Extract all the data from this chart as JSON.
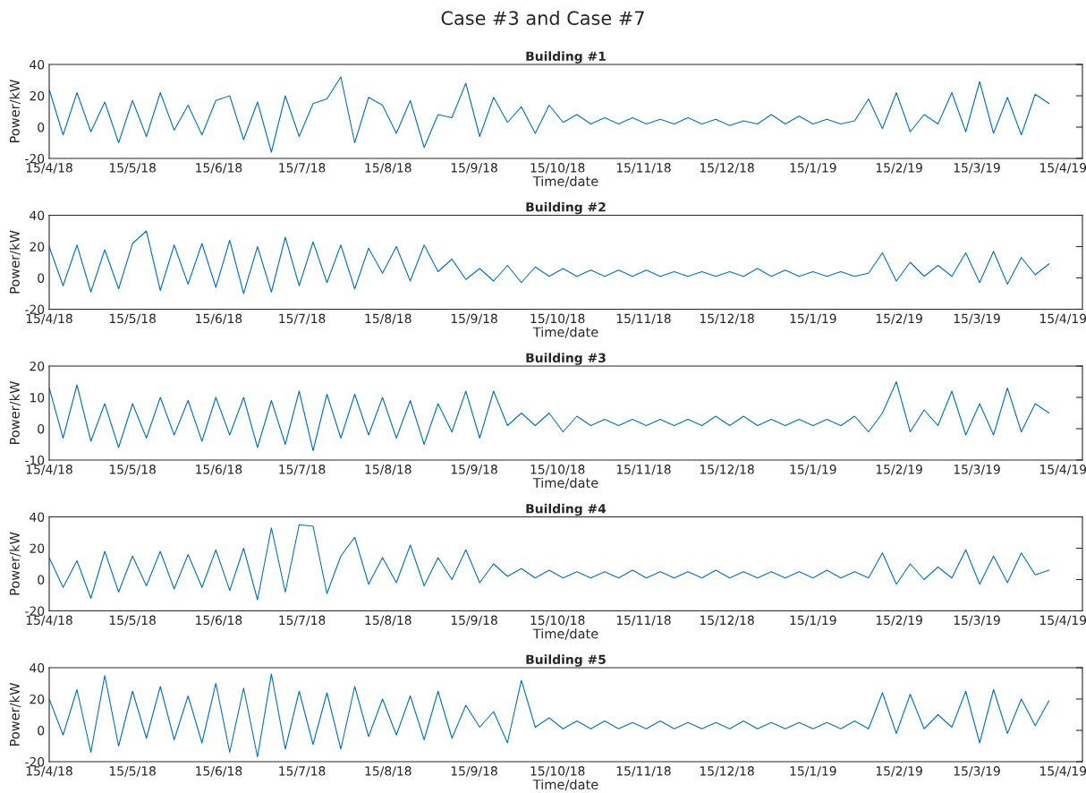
{
  "chart_data": [
    {
      "type": "line",
      "title": "Building #1",
      "xlabel": "Time/date",
      "ylabel": "Power/kW",
      "annotations": [
        "Case #3 and Case #7"
      ],
      "x": [
        "2018-04-15",
        "2018-04-20",
        "2018-04-25",
        "2018-04-30",
        "2018-05-05",
        "2018-05-10",
        "2018-05-15",
        "2018-05-20",
        "2018-05-25",
        "2018-05-30",
        "2018-06-04",
        "2018-06-09",
        "2018-06-14",
        "2018-06-19",
        "2018-06-24",
        "2018-06-29",
        "2018-07-04",
        "2018-07-09",
        "2018-07-14",
        "2018-07-19",
        "2018-07-24",
        "2018-07-29",
        "2018-08-03",
        "2018-08-08",
        "2018-08-13",
        "2018-08-18",
        "2018-08-23",
        "2018-08-28",
        "2018-09-02",
        "2018-09-07",
        "2018-09-12",
        "2018-09-17",
        "2018-09-22",
        "2018-09-27",
        "2018-10-02",
        "2018-10-07",
        "2018-10-12",
        "2018-10-17",
        "2018-10-22",
        "2018-10-27",
        "2018-11-01",
        "2018-11-06",
        "2018-11-11",
        "2018-11-16",
        "2018-11-21",
        "2018-11-26",
        "2018-12-01",
        "2018-12-06",
        "2018-12-11",
        "2018-12-16",
        "2018-12-21",
        "2018-12-26",
        "2018-12-31",
        "2019-01-05",
        "2019-01-10",
        "2019-01-15",
        "2019-01-20",
        "2019-01-25",
        "2019-01-30",
        "2019-02-04",
        "2019-02-09",
        "2019-02-14",
        "2019-02-19",
        "2019-02-24",
        "2019-03-01",
        "2019-03-06",
        "2019-03-11",
        "2019-03-16",
        "2019-03-21",
        "2019-03-26",
        "2019-03-31",
        "2019-04-05",
        "2019-04-10"
      ],
      "series": [
        {
          "color": "#0072bd",
          "values": [
            24,
            -5,
            22,
            -3,
            16,
            -10,
            17,
            -6,
            22,
            -2,
            14,
            -5,
            17,
            20,
            -8,
            16,
            -16,
            20,
            -6,
            15,
            18,
            32,
            -10,
            19,
            14,
            -4,
            17,
            -13,
            8,
            6,
            28,
            -6,
            19,
            3,
            13,
            -4,
            14,
            3,
            8,
            2,
            6,
            2,
            6,
            2,
            5,
            2,
            6,
            2,
            5,
            1,
            4,
            2,
            8,
            2,
            7,
            2,
            5,
            2,
            4,
            18,
            -1,
            22,
            -3,
            8,
            2,
            22,
            -3,
            29,
            -4,
            19,
            -5,
            21,
            15
          ]
        }
      ],
      "xlim": [
        "2018-04-15",
        "2019-04-22"
      ],
      "xticks": [
        {
          "value": "2018-04-15",
          "label": "15/4/18"
        },
        {
          "value": "2018-05-15",
          "label": "15/5/18"
        },
        {
          "value": "2018-06-15",
          "label": "15/6/18"
        },
        {
          "value": "2018-07-15",
          "label": "15/7/18"
        },
        {
          "value": "2018-08-15",
          "label": "15/8/18"
        },
        {
          "value": "2018-09-15",
          "label": "15/9/18"
        },
        {
          "value": "2018-10-15",
          "label": "15/10/18"
        },
        {
          "value": "2018-11-15",
          "label": "15/11/18"
        },
        {
          "value": "2018-12-15",
          "label": "15/12/18"
        },
        {
          "value": "2019-01-15",
          "label": "15/1/19"
        },
        {
          "value": "2019-02-15",
          "label": "15/2/19"
        },
        {
          "value": "2019-03-15",
          "label": "15/3/19"
        },
        {
          "value": "2019-04-15",
          "label": "15/4/19"
        }
      ],
      "ylim": [
        -20,
        40
      ],
      "yticks": [
        -20,
        0,
        20,
        40
      ]
    },
    {
      "type": "line",
      "title": "Building #2",
      "xlabel": "Time/date",
      "ylabel": "Power/kW",
      "x": [
        "2018-04-15",
        "2018-04-20",
        "2018-04-25",
        "2018-04-30",
        "2018-05-05",
        "2018-05-10",
        "2018-05-15",
        "2018-05-20",
        "2018-05-25",
        "2018-05-30",
        "2018-06-04",
        "2018-06-09",
        "2018-06-14",
        "2018-06-19",
        "2018-06-24",
        "2018-06-29",
        "2018-07-04",
        "2018-07-09",
        "2018-07-14",
        "2018-07-19",
        "2018-07-24",
        "2018-07-29",
        "2018-08-03",
        "2018-08-08",
        "2018-08-13",
        "2018-08-18",
        "2018-08-23",
        "2018-08-28",
        "2018-09-02",
        "2018-09-07",
        "2018-09-12",
        "2018-09-17",
        "2018-09-22",
        "2018-09-27",
        "2018-10-02",
        "2018-10-07",
        "2018-10-12",
        "2018-10-17",
        "2018-10-22",
        "2018-10-27",
        "2018-11-01",
        "2018-11-06",
        "2018-11-11",
        "2018-11-16",
        "2018-11-21",
        "2018-11-26",
        "2018-12-01",
        "2018-12-06",
        "2018-12-11",
        "2018-12-16",
        "2018-12-21",
        "2018-12-26",
        "2018-12-31",
        "2019-01-05",
        "2019-01-10",
        "2019-01-15",
        "2019-01-20",
        "2019-01-25",
        "2019-01-30",
        "2019-02-04",
        "2019-02-09",
        "2019-02-14",
        "2019-02-19",
        "2019-02-24",
        "2019-03-01",
        "2019-03-06",
        "2019-03-11",
        "2019-03-16",
        "2019-03-21",
        "2019-03-26",
        "2019-03-31",
        "2019-04-05",
        "2019-04-10"
      ],
      "series": [
        {
          "color": "#0072bd",
          "values": [
            20,
            -5,
            21,
            -9,
            18,
            -7,
            22,
            30,
            -8,
            21,
            -4,
            22,
            -6,
            24,
            -10,
            20,
            -9,
            26,
            -5,
            23,
            -3,
            21,
            -7,
            19,
            3,
            20,
            -2,
            21,
            4,
            12,
            -1,
            6,
            -2,
            8,
            -3,
            7,
            1,
            6,
            1,
            5,
            1,
            5,
            1,
            5,
            1,
            4,
            1,
            4,
            1,
            4,
            1,
            6,
            1,
            5,
            1,
            4,
            1,
            4,
            1,
            3,
            16,
            -2,
            10,
            1,
            8,
            1,
            16,
            -3,
            17,
            -4,
            13,
            2,
            9
          ]
        }
      ],
      "xlim": [
        "2018-04-15",
        "2019-04-22"
      ],
      "xticks": [
        {
          "value": "2018-04-15",
          "label": "15/4/18"
        },
        {
          "value": "2018-05-15",
          "label": "15/5/18"
        },
        {
          "value": "2018-06-15",
          "label": "15/6/18"
        },
        {
          "value": "2018-07-15",
          "label": "15/7/18"
        },
        {
          "value": "2018-08-15",
          "label": "15/8/18"
        },
        {
          "value": "2018-09-15",
          "label": "15/9/18"
        },
        {
          "value": "2018-10-15",
          "label": "15/10/18"
        },
        {
          "value": "2018-11-15",
          "label": "15/11/18"
        },
        {
          "value": "2018-12-15",
          "label": "15/12/18"
        },
        {
          "value": "2019-01-15",
          "label": "15/1/19"
        },
        {
          "value": "2019-02-15",
          "label": "15/2/19"
        },
        {
          "value": "2019-03-15",
          "label": "15/3/19"
        },
        {
          "value": "2019-04-15",
          "label": "15/4/19"
        }
      ],
      "ylim": [
        -20,
        40
      ],
      "yticks": [
        -20,
        0,
        20,
        40
      ]
    },
    {
      "type": "line",
      "title": "Building #3",
      "xlabel": "Time/date",
      "ylabel": "Power/kW",
      "x": [
        "2018-04-15",
        "2018-04-20",
        "2018-04-25",
        "2018-04-30",
        "2018-05-05",
        "2018-05-10",
        "2018-05-15",
        "2018-05-20",
        "2018-05-25",
        "2018-05-30",
        "2018-06-04",
        "2018-06-09",
        "2018-06-14",
        "2018-06-19",
        "2018-06-24",
        "2018-06-29",
        "2018-07-04",
        "2018-07-09",
        "2018-07-14",
        "2018-07-19",
        "2018-07-24",
        "2018-07-29",
        "2018-08-03",
        "2018-08-08",
        "2018-08-13",
        "2018-08-18",
        "2018-08-23",
        "2018-08-28",
        "2018-09-02",
        "2018-09-07",
        "2018-09-12",
        "2018-09-17",
        "2018-09-22",
        "2018-09-27",
        "2018-10-02",
        "2018-10-07",
        "2018-10-12",
        "2018-10-17",
        "2018-10-22",
        "2018-10-27",
        "2018-11-01",
        "2018-11-06",
        "2018-11-11",
        "2018-11-16",
        "2018-11-21",
        "2018-11-26",
        "2018-12-01",
        "2018-12-06",
        "2018-12-11",
        "2018-12-16",
        "2018-12-21",
        "2018-12-26",
        "2018-12-31",
        "2019-01-05",
        "2019-01-10",
        "2019-01-15",
        "2019-01-20",
        "2019-01-25",
        "2019-01-30",
        "2019-02-04",
        "2019-02-09",
        "2019-02-14",
        "2019-02-19",
        "2019-02-24",
        "2019-03-01",
        "2019-03-06",
        "2019-03-11",
        "2019-03-16",
        "2019-03-21",
        "2019-03-26",
        "2019-03-31",
        "2019-04-05",
        "2019-04-10"
      ],
      "series": [
        {
          "color": "#0072bd",
          "values": [
            13,
            -3,
            14,
            -4,
            8,
            -6,
            8,
            -3,
            10,
            -2,
            9,
            -4,
            10,
            -2,
            10,
            -6,
            9,
            -5,
            12,
            -7,
            11,
            -3,
            11,
            -2,
            10,
            -3,
            9,
            -5,
            8,
            -1,
            12,
            -3,
            12,
            1,
            5,
            1,
            5,
            -1,
            4,
            1,
            3,
            1,
            3,
            1,
            3,
            1,
            3,
            1,
            4,
            1,
            4,
            1,
            3,
            1,
            3,
            1,
            3,
            1,
            4,
            -1,
            5,
            15,
            -1,
            6,
            1,
            12,
            -2,
            8,
            -2,
            13,
            -1,
            8,
            5
          ]
        }
      ],
      "xlim": [
        "2018-04-15",
        "2019-04-22"
      ],
      "xticks": [
        {
          "value": "2018-04-15",
          "label": "15/4/18"
        },
        {
          "value": "2018-05-15",
          "label": "15/5/18"
        },
        {
          "value": "2018-06-15",
          "label": "15/6/18"
        },
        {
          "value": "2018-07-15",
          "label": "15/7/18"
        },
        {
          "value": "2018-08-15",
          "label": "15/8/18"
        },
        {
          "value": "2018-09-15",
          "label": "15/9/18"
        },
        {
          "value": "2018-10-15",
          "label": "15/10/18"
        },
        {
          "value": "2018-11-15",
          "label": "15/11/18"
        },
        {
          "value": "2018-12-15",
          "label": "15/12/18"
        },
        {
          "value": "2019-01-15",
          "label": "15/1/19"
        },
        {
          "value": "2019-02-15",
          "label": "15/2/19"
        },
        {
          "value": "2019-03-15",
          "label": "15/3/19"
        },
        {
          "value": "2019-04-15",
          "label": "15/4/19"
        }
      ],
      "ylim": [
        -10,
        20
      ],
      "yticks": [
        -10,
        0,
        10,
        20
      ]
    },
    {
      "type": "line",
      "title": "Building #4",
      "xlabel": "Time/date",
      "ylabel": "Power/kW",
      "x": [
        "2018-04-15",
        "2018-04-20",
        "2018-04-25",
        "2018-04-30",
        "2018-05-05",
        "2018-05-10",
        "2018-05-15",
        "2018-05-20",
        "2018-05-25",
        "2018-05-30",
        "2018-06-04",
        "2018-06-09",
        "2018-06-14",
        "2018-06-19",
        "2018-06-24",
        "2018-06-29",
        "2018-07-04",
        "2018-07-09",
        "2018-07-14",
        "2018-07-19",
        "2018-07-24",
        "2018-07-29",
        "2018-08-03",
        "2018-08-08",
        "2018-08-13",
        "2018-08-18",
        "2018-08-23",
        "2018-08-28",
        "2018-09-02",
        "2018-09-07",
        "2018-09-12",
        "2018-09-17",
        "2018-09-22",
        "2018-09-27",
        "2018-10-02",
        "2018-10-07",
        "2018-10-12",
        "2018-10-17",
        "2018-10-22",
        "2018-10-27",
        "2018-11-01",
        "2018-11-06",
        "2018-11-11",
        "2018-11-16",
        "2018-11-21",
        "2018-11-26",
        "2018-12-01",
        "2018-12-06",
        "2018-12-11",
        "2018-12-16",
        "2018-12-21",
        "2018-12-26",
        "2018-12-31",
        "2019-01-05",
        "2019-01-10",
        "2019-01-15",
        "2019-01-20",
        "2019-01-25",
        "2019-01-30",
        "2019-02-04",
        "2019-02-09",
        "2019-02-14",
        "2019-02-19",
        "2019-02-24",
        "2019-03-01",
        "2019-03-06",
        "2019-03-11",
        "2019-03-16",
        "2019-03-21",
        "2019-03-26",
        "2019-03-31",
        "2019-04-05",
        "2019-04-10"
      ],
      "series": [
        {
          "color": "#0072bd",
          "values": [
            14,
            -5,
            12,
            -12,
            18,
            -8,
            15,
            -4,
            18,
            -6,
            16,
            -5,
            19,
            -7,
            20,
            -13,
            33,
            -8,
            35,
            34,
            -9,
            15,
            27,
            -3,
            14,
            -2,
            22,
            -4,
            14,
            0,
            19,
            -2,
            10,
            2,
            7,
            1,
            6,
            1,
            5,
            1,
            5,
            1,
            6,
            1,
            5,
            1,
            5,
            1,
            6,
            1,
            5,
            1,
            5,
            1,
            5,
            1,
            6,
            1,
            5,
            1,
            17,
            -3,
            10,
            0,
            8,
            1,
            19,
            -3,
            15,
            -2,
            17,
            3,
            6
          ]
        }
      ],
      "xlim": [
        "2018-04-15",
        "2019-04-22"
      ],
      "xticks": [
        {
          "value": "2018-04-15",
          "label": "15/4/18"
        },
        {
          "value": "2018-05-15",
          "label": "15/5/18"
        },
        {
          "value": "2018-06-15",
          "label": "15/6/18"
        },
        {
          "value": "2018-07-15",
          "label": "15/7/18"
        },
        {
          "value": "2018-08-15",
          "label": "15/8/18"
        },
        {
          "value": "2018-09-15",
          "label": "15/9/18"
        },
        {
          "value": "2018-10-15",
          "label": "15/10/18"
        },
        {
          "value": "2018-11-15",
          "label": "15/11/18"
        },
        {
          "value": "2018-12-15",
          "label": "15/12/18"
        },
        {
          "value": "2019-01-15",
          "label": "15/1/19"
        },
        {
          "value": "2019-02-15",
          "label": "15/2/19"
        },
        {
          "value": "2019-03-15",
          "label": "15/3/19"
        },
        {
          "value": "2019-04-15",
          "label": "15/4/19"
        }
      ],
      "ylim": [
        -20,
        40
      ],
      "yticks": [
        -20,
        0,
        20,
        40
      ]
    },
    {
      "type": "line",
      "title": "Building #5",
      "xlabel": "Time/date",
      "ylabel": "Power/kW",
      "x": [
        "2018-04-15",
        "2018-04-20",
        "2018-04-25",
        "2018-04-30",
        "2018-05-05",
        "2018-05-10",
        "2018-05-15",
        "2018-05-20",
        "2018-05-25",
        "2018-05-30",
        "2018-06-04",
        "2018-06-09",
        "2018-06-14",
        "2018-06-19",
        "2018-06-24",
        "2018-06-29",
        "2018-07-04",
        "2018-07-09",
        "2018-07-14",
        "2018-07-19",
        "2018-07-24",
        "2018-07-29",
        "2018-08-03",
        "2018-08-08",
        "2018-08-13",
        "2018-08-18",
        "2018-08-23",
        "2018-08-28",
        "2018-09-02",
        "2018-09-07",
        "2018-09-12",
        "2018-09-17",
        "2018-09-22",
        "2018-09-27",
        "2018-10-02",
        "2018-10-07",
        "2018-10-12",
        "2018-10-17",
        "2018-10-22",
        "2018-10-27",
        "2018-11-01",
        "2018-11-06",
        "2018-11-11",
        "2018-11-16",
        "2018-11-21",
        "2018-11-26",
        "2018-12-01",
        "2018-12-06",
        "2018-12-11",
        "2018-12-16",
        "2018-12-21",
        "2018-12-26",
        "2018-12-31",
        "2019-01-05",
        "2019-01-10",
        "2019-01-15",
        "2019-01-20",
        "2019-01-25",
        "2019-01-30",
        "2019-02-04",
        "2019-02-09",
        "2019-02-14",
        "2019-02-19",
        "2019-02-24",
        "2019-03-01",
        "2019-03-06",
        "2019-03-11",
        "2019-03-16",
        "2019-03-21",
        "2019-03-26",
        "2019-03-31",
        "2019-04-05",
        "2019-04-10"
      ],
      "series": [
        {
          "color": "#0072bd",
          "values": [
            20,
            -3,
            26,
            -14,
            35,
            -10,
            25,
            -5,
            28,
            -6,
            22,
            -8,
            30,
            -14,
            27,
            -17,
            36,
            -12,
            25,
            -9,
            24,
            -12,
            28,
            -4,
            20,
            -3,
            22,
            -6,
            25,
            -5,
            16,
            2,
            12,
            -8,
            32,
            2,
            8,
            1,
            6,
            1,
            6,
            1,
            5,
            1,
            6,
            1,
            5,
            1,
            5,
            1,
            6,
            1,
            5,
            1,
            5,
            1,
            5,
            1,
            6,
            1,
            24,
            -2,
            23,
            1,
            10,
            2,
            25,
            -8,
            26,
            -2,
            20,
            3,
            19
          ]
        }
      ],
      "xlim": [
        "2018-04-15",
        "2019-04-22"
      ],
      "xticks": [
        {
          "value": "2018-04-15",
          "label": "15/4/18"
        },
        {
          "value": "2018-05-15",
          "label": "15/5/18"
        },
        {
          "value": "2018-06-15",
          "label": "15/6/18"
        },
        {
          "value": "2018-07-15",
          "label": "15/7/18"
        },
        {
          "value": "2018-08-15",
          "label": "15/8/18"
        },
        {
          "value": "2018-09-15",
          "label": "15/9/18"
        },
        {
          "value": "2018-10-15",
          "label": "15/10/18"
        },
        {
          "value": "2018-11-15",
          "label": "15/11/18"
        },
        {
          "value": "2018-12-15",
          "label": "15/12/18"
        },
        {
          "value": "2019-01-15",
          "label": "15/1/19"
        },
        {
          "value": "2019-02-15",
          "label": "15/2/19"
        },
        {
          "value": "2019-03-15",
          "label": "15/3/19"
        },
        {
          "value": "2019-04-15",
          "label": "15/4/19"
        }
      ],
      "ylim": [
        -20,
        40
      ],
      "yticks": [
        -20,
        0,
        20,
        40
      ]
    }
  ]
}
